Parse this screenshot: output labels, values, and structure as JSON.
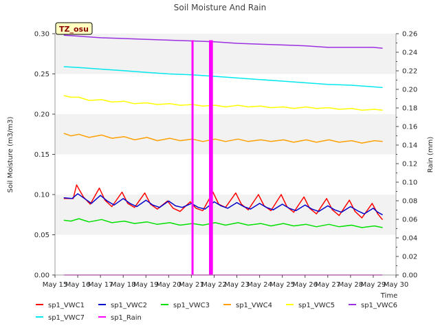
{
  "chart_data": {
    "type": "line",
    "title": "Soil Moisture And Rain",
    "site_label": "TZ_osu",
    "xlabel": "Time",
    "ylabel": "Soil Moisture (m3/m3)",
    "y2label": "Rain (mm)",
    "xlim": [
      15,
      30
    ],
    "ylim": [
      0,
      0.3
    ],
    "y2lim": [
      0,
      0.26
    ],
    "x_ticks": [
      15,
      16,
      17,
      18,
      19,
      20,
      21,
      22,
      23,
      24,
      25,
      26,
      27,
      28,
      29,
      30
    ],
    "x_tick_labels": [
      "May 15",
      "May 16",
      "May 17",
      "May 18",
      "May 19",
      "May 20",
      "May 21",
      "May 22",
      "May 23",
      "May 24",
      "May 25",
      "May 26",
      "May 27",
      "May 28",
      "May 29",
      "May 30"
    ],
    "y_ticks": [
      "0.00",
      "0.05",
      "0.10",
      "0.15",
      "0.20",
      "0.25",
      "0.30"
    ],
    "y2_ticks": [
      "0.00",
      "0.02",
      "0.04",
      "0.06",
      "0.08",
      "0.10",
      "0.12",
      "0.14",
      "0.16",
      "0.18",
      "0.20",
      "0.22",
      "0.24",
      "0.26"
    ],
    "grid": "horizontal bands",
    "legend": "bottom",
    "series": [
      {
        "name": "sp1_VWC1",
        "color": "#ff0000",
        "axis": "left",
        "x": [
          15.4,
          15.8,
          15.95,
          16.25,
          16.55,
          16.95,
          17.2,
          17.5,
          17.95,
          18.2,
          18.5,
          18.95,
          19.2,
          19.5,
          19.95,
          20.2,
          20.5,
          20.95,
          21.2,
          21.5,
          21.95,
          22.2,
          22.5,
          22.95,
          23.2,
          23.5,
          23.95,
          24.2,
          24.5,
          24.95,
          25.2,
          25.5,
          25.95,
          26.2,
          26.5,
          26.95,
          27.2,
          27.5,
          27.95,
          28.2,
          28.5,
          28.95,
          29.2,
          29.4
        ],
        "y": [
          0.095,
          0.095,
          0.112,
          0.097,
          0.088,
          0.108,
          0.093,
          0.085,
          0.103,
          0.089,
          0.084,
          0.102,
          0.088,
          0.082,
          0.092,
          0.083,
          0.079,
          0.091,
          0.083,
          0.08,
          0.103,
          0.088,
          0.084,
          0.102,
          0.088,
          0.081,
          0.1,
          0.086,
          0.08,
          0.1,
          0.085,
          0.078,
          0.097,
          0.083,
          0.076,
          0.095,
          0.081,
          0.074,
          0.093,
          0.079,
          0.071,
          0.089,
          0.076,
          0.069
        ]
      },
      {
        "name": "sp1_VWC2",
        "color": "#0000cc",
        "axis": "left",
        "x": [
          15.4,
          15.75,
          16.0,
          16.3,
          16.6,
          17.0,
          17.3,
          17.6,
          18.0,
          18.3,
          18.6,
          19.0,
          19.3,
          19.6,
          20.0,
          20.3,
          20.6,
          21.0,
          21.3,
          21.6,
          22.0,
          22.3,
          22.6,
          23.0,
          23.3,
          23.6,
          24.0,
          24.3,
          24.6,
          25.0,
          25.3,
          25.6,
          26.0,
          26.3,
          26.6,
          27.0,
          27.3,
          27.6,
          28.0,
          28.3,
          28.6,
          29.0,
          29.2,
          29.4
        ],
        "y": [
          0.096,
          0.095,
          0.101,
          0.095,
          0.089,
          0.099,
          0.092,
          0.087,
          0.095,
          0.089,
          0.085,
          0.093,
          0.087,
          0.084,
          0.092,
          0.086,
          0.084,
          0.089,
          0.084,
          0.082,
          0.091,
          0.086,
          0.083,
          0.09,
          0.085,
          0.082,
          0.089,
          0.084,
          0.081,
          0.088,
          0.083,
          0.08,
          0.087,
          0.082,
          0.079,
          0.086,
          0.081,
          0.078,
          0.085,
          0.08,
          0.076,
          0.083,
          0.078,
          0.075
        ]
      },
      {
        "name": "sp1_VWC3",
        "color": "#00e000",
        "axis": "left",
        "x": [
          15.4,
          15.7,
          16.05,
          16.5,
          17.05,
          17.5,
          18.05,
          18.5,
          19.05,
          19.5,
          20.05,
          20.5,
          21.05,
          21.5,
          22.05,
          22.5,
          23.05,
          23.5,
          24.05,
          24.5,
          25.05,
          25.5,
          26.05,
          26.5,
          27.05,
          27.5,
          28.05,
          28.5,
          29.05,
          29.4
        ],
        "y": [
          0.068,
          0.067,
          0.07,
          0.066,
          0.069,
          0.065,
          0.067,
          0.064,
          0.066,
          0.063,
          0.065,
          0.062,
          0.064,
          0.062,
          0.065,
          0.062,
          0.065,
          0.062,
          0.064,
          0.061,
          0.064,
          0.061,
          0.063,
          0.06,
          0.063,
          0.06,
          0.062,
          0.059,
          0.061,
          0.059
        ]
      },
      {
        "name": "sp1_VWC4",
        "color": "#ffa000",
        "axis": "left",
        "x": [
          15.4,
          15.7,
          16.05,
          16.5,
          17.05,
          17.5,
          18.05,
          18.5,
          19.05,
          19.5,
          20.05,
          20.5,
          21.05,
          21.5,
          22.05,
          22.5,
          23.05,
          23.5,
          24.05,
          24.5,
          25.05,
          25.5,
          26.05,
          26.5,
          27.05,
          27.5,
          28.05,
          28.5,
          29.05,
          29.4
        ],
        "y": [
          0.176,
          0.173,
          0.175,
          0.171,
          0.174,
          0.17,
          0.172,
          0.168,
          0.171,
          0.167,
          0.17,
          0.167,
          0.169,
          0.166,
          0.169,
          0.166,
          0.169,
          0.166,
          0.168,
          0.166,
          0.168,
          0.165,
          0.168,
          0.165,
          0.168,
          0.165,
          0.167,
          0.164,
          0.167,
          0.166
        ]
      },
      {
        "name": "sp1_VWC5",
        "color": "#ffff00",
        "axis": "left",
        "x": [
          15.4,
          15.7,
          16.05,
          16.5,
          17.05,
          17.5,
          18.05,
          18.5,
          19.05,
          19.5,
          20.05,
          20.5,
          21.05,
          21.5,
          22.05,
          22.5,
          23.05,
          23.5,
          24.05,
          24.5,
          25.05,
          25.5,
          26.05,
          26.5,
          27.05,
          27.5,
          28.05,
          28.5,
          29.05,
          29.4
        ],
        "y": [
          0.223,
          0.221,
          0.221,
          0.217,
          0.218,
          0.215,
          0.216,
          0.213,
          0.214,
          0.212,
          0.213,
          0.211,
          0.212,
          0.21,
          0.211,
          0.209,
          0.211,
          0.209,
          0.21,
          0.208,
          0.209,
          0.207,
          0.209,
          0.207,
          0.208,
          0.206,
          0.207,
          0.205,
          0.206,
          0.205
        ]
      },
      {
        "name": "sp1_VWC6",
        "color": "#9b30e0",
        "axis": "left",
        "x": [
          15.4,
          16.0,
          17.0,
          18.0,
          19.0,
          20.0,
          21.0,
          22.0,
          23.0,
          24.0,
          25.0,
          26.0,
          26.5,
          27.0,
          28.0,
          29.0,
          29.4
        ],
        "y": [
          0.298,
          0.297,
          0.295,
          0.294,
          0.293,
          0.292,
          0.291,
          0.29,
          0.288,
          0.287,
          0.286,
          0.285,
          0.284,
          0.283,
          0.283,
          0.283,
          0.282
        ]
      },
      {
        "name": "sp1_VWC7",
        "color": "#00e8ee",
        "axis": "left",
        "x": [
          15.4,
          16.0,
          17.0,
          18.0,
          19.0,
          20.0,
          21.0,
          22.0,
          23.0,
          24.0,
          25.0,
          26.0,
          27.0,
          28.0,
          29.0,
          29.4
        ],
        "y": [
          0.259,
          0.258,
          0.256,
          0.254,
          0.252,
          0.25,
          0.249,
          0.247,
          0.245,
          0.243,
          0.241,
          0.239,
          0.237,
          0.236,
          0.234,
          0.233
        ]
      },
      {
        "name": "sp1_Rain",
        "color": "#ff00ff",
        "axis": "right",
        "bars": [
          {
            "x": 21.05,
            "y": 0.253
          },
          {
            "x": 21.82,
            "y": 0.253
          },
          {
            "x": 21.9,
            "y": 0.253
          }
        ],
        "x": [
          15.4,
          29.4
        ],
        "y": [
          0,
          0
        ]
      }
    ]
  }
}
